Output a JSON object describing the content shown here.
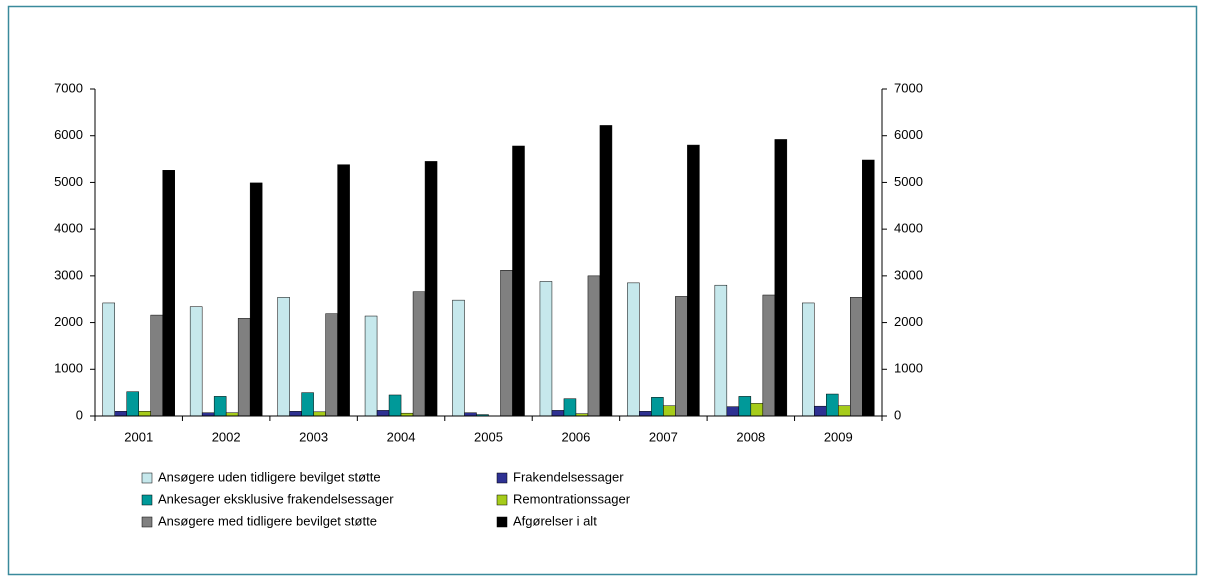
{
  "chart_data": {
    "type": "bar",
    "categories": [
      "2001",
      "2002",
      "2003",
      "2004",
      "2005",
      "2006",
      "2007",
      "2008",
      "2009"
    ],
    "series": [
      {
        "name": "Ansøgere uden tidligere bevilget støtte",
        "color": "#c6e8ec",
        "values": [
          2420,
          2340,
          2540,
          2140,
          2480,
          2880,
          2850,
          2800,
          2420
        ]
      },
      {
        "name": "Frakendelsessager",
        "color": "#2e3192",
        "values": [
          100,
          70,
          100,
          120,
          70,
          120,
          100,
          200,
          210
        ]
      },
      {
        "name": "Ankesager eksklusive frakendelsessager",
        "color": "#009999",
        "values": [
          520,
          420,
          500,
          450,
          30,
          370,
          400,
          420,
          470
        ]
      },
      {
        "name": "Remontrationssager",
        "color": "#a6cc1a",
        "values": [
          100,
          70,
          90,
          60,
          0,
          50,
          220,
          270,
          220
        ]
      },
      {
        "name": "Ansøgere med tidligere bevilget støtte",
        "color": "#808080",
        "values": [
          2160,
          2090,
          2190,
          2660,
          3120,
          3000,
          2560,
          2590,
          2540
        ]
      },
      {
        "name": "Afgørelser i alt",
        "color": "#000000",
        "values": [
          5260,
          4990,
          5380,
          5450,
          5780,
          6220,
          5800,
          5920,
          5480
        ]
      }
    ],
    "ylim": [
      0,
      7000
    ],
    "yticks": [
      0,
      1000,
      2000,
      3000,
      4000,
      5000,
      6000,
      7000
    ],
    "y2lim": [
      0,
      7000
    ],
    "y2ticks": [
      0,
      1000,
      2000,
      3000,
      4000,
      5000,
      6000,
      7000
    ]
  }
}
